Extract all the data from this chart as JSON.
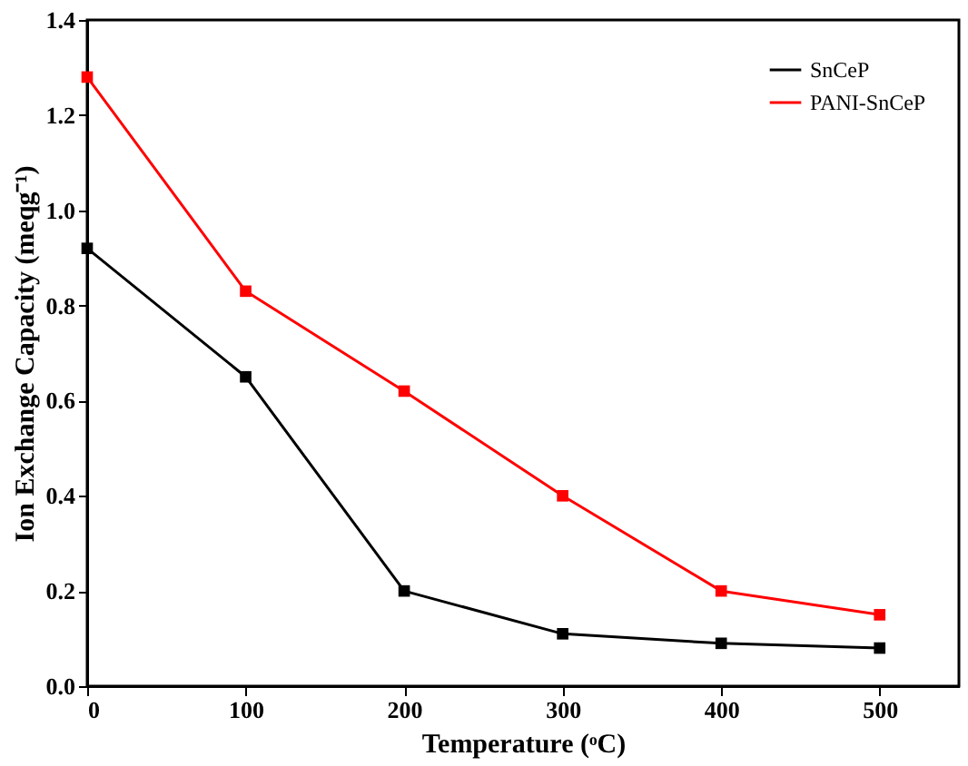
{
  "chart_data": {
    "type": "line",
    "xlabel": "Temperature (ᵒC)",
    "ylabel": "Ion Exchange Capacity (meqg⁻¹)",
    "x": [
      0,
      100,
      200,
      300,
      400,
      500
    ],
    "series": [
      {
        "name": "SnCeP",
        "color": "#000000",
        "values": [
          0.92,
          0.65,
          0.2,
          0.11,
          0.09,
          0.08
        ]
      },
      {
        "name": "PANI-SnCeP",
        "color": "#ff0000",
        "values": [
          1.28,
          0.83,
          0.62,
          0.4,
          0.2,
          0.15
        ]
      }
    ],
    "xlim": [
      0,
      550
    ],
    "xticks": [
      0,
      100,
      200,
      300,
      400,
      500
    ],
    "ylim": [
      0,
      1.4
    ],
    "yticks": [
      {
        "value": 0,
        "label": "0.0"
      },
      0.2,
      0.4,
      0.6,
      0.8,
      {
        "value": 1,
        "label": "1.0"
      },
      1.2,
      1.4
    ],
    "grid": false,
    "legend": "top right",
    "marker": "square",
    "line_style": "solid"
  }
}
